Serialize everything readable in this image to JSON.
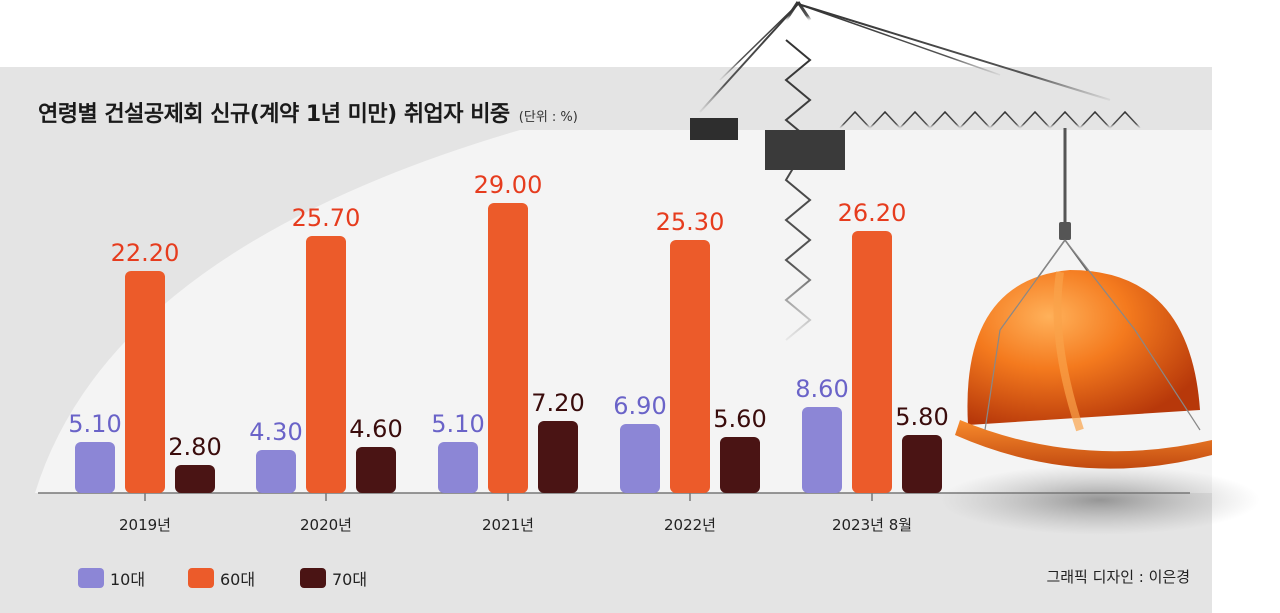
{
  "title": "연령별 건설공제회 신규(계약 1년 미만) 취업자 비중",
  "unit": "(단위 : %)",
  "credit": "그래픽 디자인 : 이은경",
  "colors": {
    "teens": "#8c86d6",
    "sixties": "#ec5b2a",
    "seventies": "#4a1414",
    "teens_label": "#6a63c8",
    "sixties_label": "#e63c1e",
    "seventies_label": "#3a0c0c"
  },
  "chart_data": {
    "type": "bar",
    "categories": [
      "2019년",
      "2020년",
      "2021년",
      "2022년",
      "2023년 8월"
    ],
    "series": [
      {
        "name": "10대",
        "values": [
          5.1,
          4.3,
          5.1,
          6.9,
          8.6
        ],
        "labels": [
          "5.10",
          "4.30",
          "5.10",
          "6.90",
          "8.60"
        ]
      },
      {
        "name": "60대",
        "values": [
          22.2,
          25.7,
          29.0,
          25.3,
          26.2
        ],
        "labels": [
          "22.20",
          "25.70",
          "29.00",
          "25.30",
          "26.20"
        ]
      },
      {
        "name": "70대",
        "values": [
          2.8,
          4.6,
          7.2,
          5.6,
          5.8
        ],
        "labels": [
          "2.80",
          "4.60",
          "7.20",
          "5.60",
          "5.80"
        ]
      }
    ],
    "ylim": [
      0,
      30
    ],
    "legend_position": "bottom-left"
  }
}
